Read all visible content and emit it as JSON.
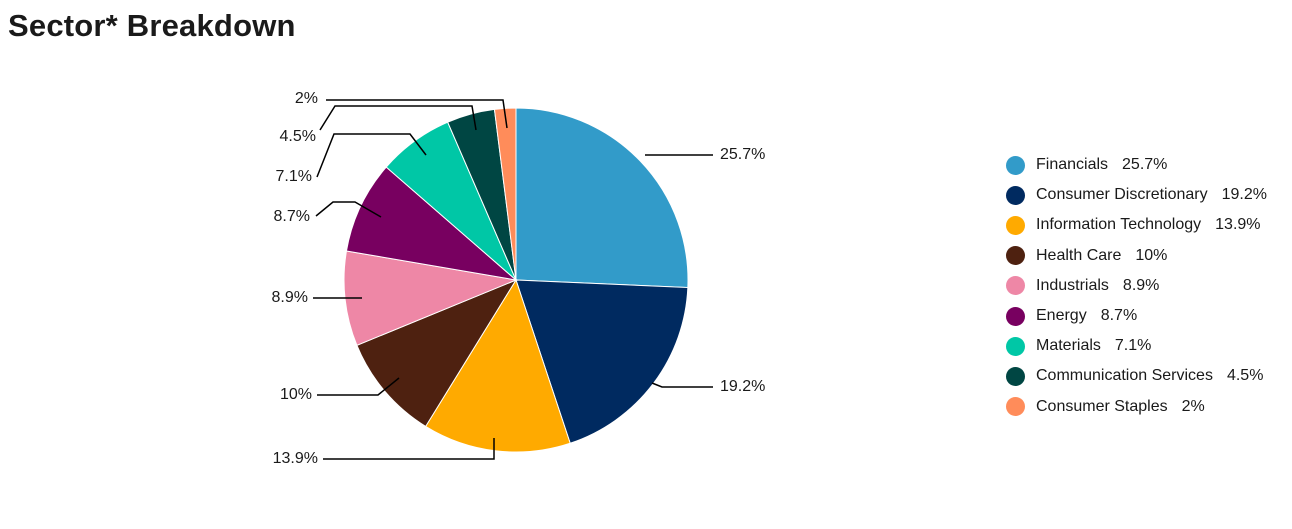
{
  "title": "Sector* Breakdown",
  "chart_data": {
    "type": "pie",
    "title": "Sector* Breakdown",
    "legend_position": "right",
    "slices": [
      {
        "label": "Financials",
        "value": 25.7,
        "display": "25.7%",
        "color": "#329bc9"
      },
      {
        "label": "Consumer Discretionary",
        "value": 19.2,
        "display": "19.2%",
        "color": "#002a60"
      },
      {
        "label": "Information Technology",
        "value": 13.9,
        "display": "13.9%",
        "color": "#ffaa00"
      },
      {
        "label": "Health Care",
        "value": 10,
        "display": "10%",
        "color": "#4e2110"
      },
      {
        "label": "Industrials",
        "value": 8.9,
        "display": "8.9%",
        "color": "#ee87a6"
      },
      {
        "label": "Energy",
        "value": 8.7,
        "display": "8.7%",
        "color": "#780060"
      },
      {
        "label": "Materials",
        "value": 7.1,
        "display": "7.1%",
        "color": "#00c7a6"
      },
      {
        "label": "Communication Services",
        "value": 4.5,
        "display": "4.5%",
        "color": "#004643"
      },
      {
        "label": "Consumer Staples",
        "value": 2,
        "display": "2%",
        "color": "#ff8c5a"
      }
    ]
  }
}
